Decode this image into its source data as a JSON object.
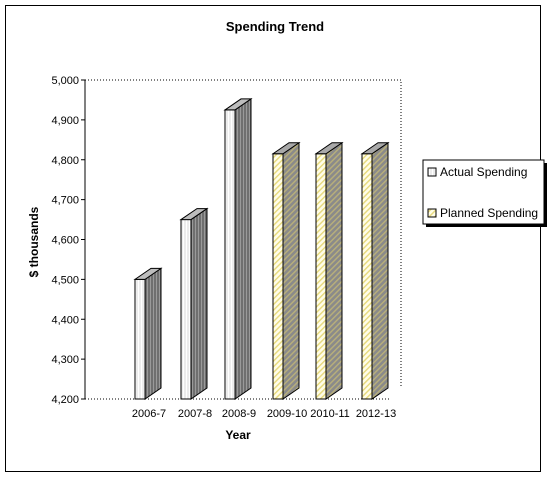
{
  "chart_data": {
    "type": "bar",
    "title": "Spending Trend",
    "xlabel": "Year",
    "ylabel": "$ thousands",
    "categories": [
      "2006-7",
      "2007-8",
      "2008-9",
      "2009-10",
      "2010-11",
      "2012-13"
    ],
    "series": [
      {
        "name": "Actual Spending",
        "values": [
          4500,
          4650,
          4925,
          null,
          null,
          null
        ]
      },
      {
        "name": "Planned Spending",
        "values": [
          null,
          null,
          null,
          4815,
          4815,
          4815
        ]
      }
    ],
    "ylim": [
      4200,
      5000
    ],
    "yticks": [
      "4,200",
      "4,300",
      "4,400",
      "4,500",
      "4,600",
      "4,700",
      "4,800",
      "4,900",
      "5,000"
    ],
    "legend_position": "right",
    "grid": false,
    "colors": {
      "actual_front": "#f2f2f2",
      "actual_side": "#7a7a7a",
      "planned_front": "#fffde8",
      "planned_side": "#8a8a8a",
      "hatch_stripe": "#e6d87a"
    }
  }
}
